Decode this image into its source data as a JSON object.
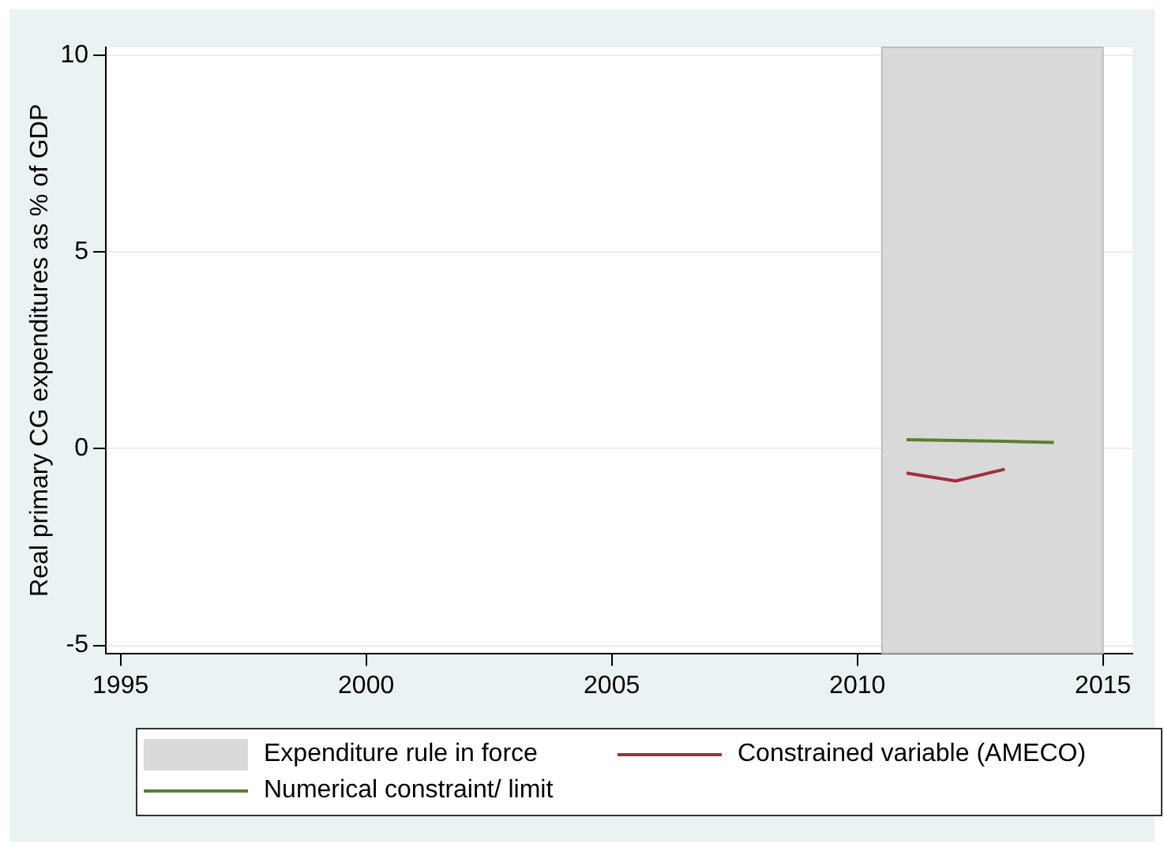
{
  "chart_data": {
    "type": "line",
    "ylabel": "Real primary CG expenditures as % of GDP",
    "series": [
      {
        "name": "Constrained variable (AMECO)",
        "color": "#a1303a",
        "x": [
          2011,
          2012,
          2013
        ],
        "values": [
          -0.62,
          -0.82,
          -0.52
        ]
      },
      {
        "name": "Numerical constraint/ limit",
        "color": "#5a7f2f",
        "x": [
          2011,
          2012,
          2013,
          2014
        ],
        "values": [
          0.23,
          0.21,
          0.19,
          0.16
        ]
      }
    ],
    "bands": [
      {
        "axis": "x",
        "from": 2010.5,
        "to": 2015,
        "label": "Expenditure rule in force",
        "color": "#d9d9d9"
      }
    ],
    "xlim": [
      1994.7,
      2015.6
    ],
    "xticks": [
      1995,
      2000,
      2005,
      2010,
      2015
    ],
    "ylim": [
      -5.2,
      10.2
    ],
    "yticks": [
      -5,
      0,
      5,
      10
    ],
    "grid": "y",
    "legend": "bottom",
    "marker": "none"
  }
}
